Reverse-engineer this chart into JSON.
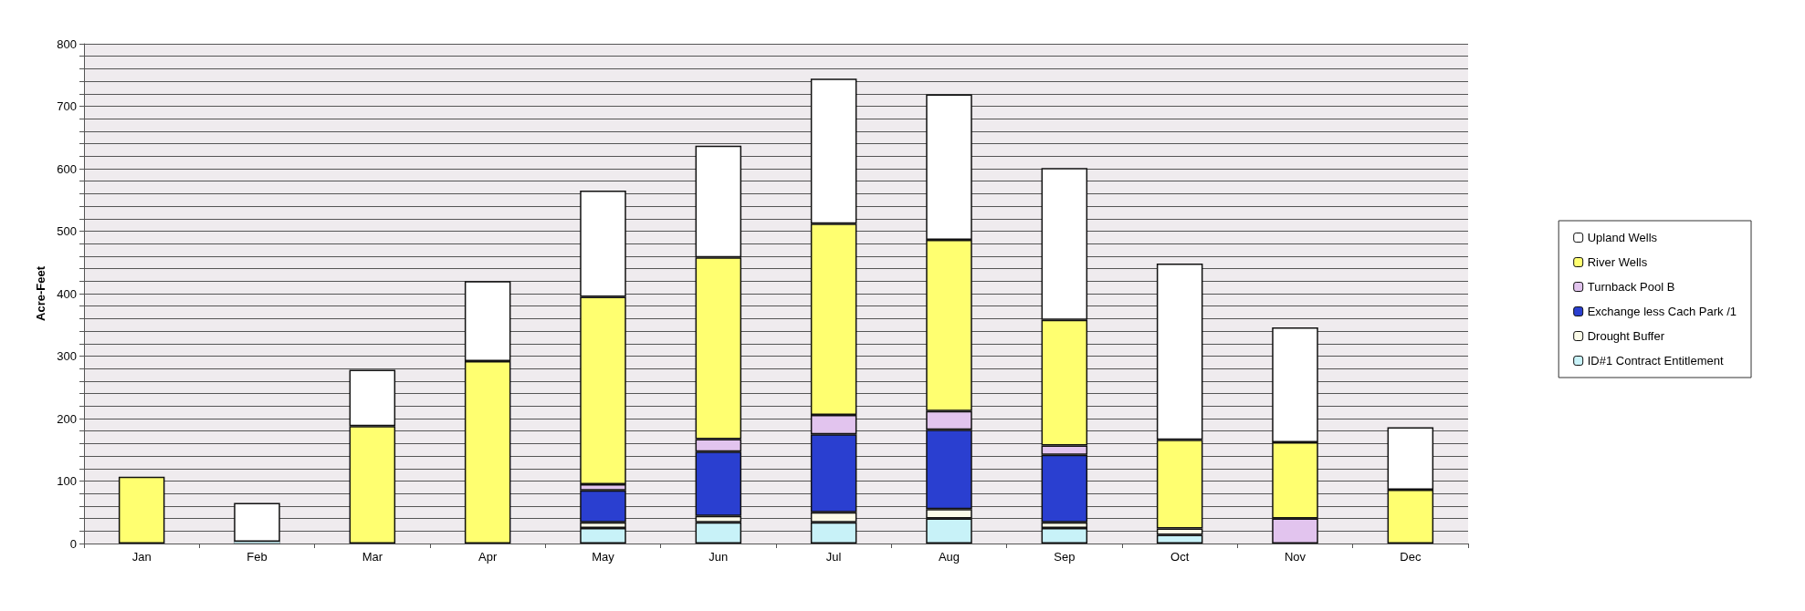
{
  "chart_data": {
    "type": "bar",
    "stacked": true,
    "ylabel": "Acre-Feet",
    "categories": [
      "Jan",
      "Feb",
      "Mar",
      "Apr",
      "May",
      "Jun",
      "Jul",
      "Aug",
      "Sep",
      "Oct",
      "Nov",
      "Dec"
    ],
    "series": [
      {
        "name": "ID#1 Contract Entitlement",
        "color": "#c8f2f8",
        "values": [
          0,
          3,
          0,
          0,
          25,
          34,
          34,
          40,
          25,
          14,
          0,
          0
        ]
      },
      {
        "name": "Drought Buffer",
        "color": "#fbfbe8",
        "values": [
          0,
          0,
          0,
          0,
          9,
          10,
          16,
          15,
          9,
          10,
          0,
          0
        ]
      },
      {
        "name": "Exchange less Cach Park /1",
        "color": "#2a3fd0",
        "values": [
          0,
          0,
          0,
          0,
          51,
          103,
          125,
          127,
          108,
          0,
          0,
          0
        ]
      },
      {
        "name": "Turnback Pool B",
        "color": "#e2c4ee",
        "values": [
          0,
          0,
          0,
          0,
          10,
          20,
          31,
          30,
          15,
          0,
          40,
          0
        ]
      },
      {
        "name": "River Wells",
        "color": "#ffff70",
        "values": [
          107,
          0,
          188,
          292,
          300,
          291,
          306,
          274,
          201,
          142,
          122,
          86
        ]
      },
      {
        "name": "Upland Wells",
        "color": "#ffffff",
        "values": [
          0,
          62,
          90,
          128,
          170,
          179,
          232,
          233,
          243,
          282,
          184,
          100
        ]
      }
    ],
    "ylim": [
      0,
      800
    ],
    "yticks": [
      0,
      {
        "value": 20,
        "label": null
      },
      {
        "value": 40,
        "label": null
      },
      {
        "value": 60,
        "label": null
      },
      {
        "value": 80,
        "label": null
      },
      100,
      {
        "value": 120,
        "label": null
      },
      {
        "value": 140,
        "label": null
      },
      {
        "value": 160,
        "label": null
      },
      {
        "value": 180,
        "label": null
      },
      200,
      {
        "value": 220,
        "label": null
      },
      {
        "value": 240,
        "label": null
      },
      {
        "value": 260,
        "label": null
      },
      {
        "value": 280,
        "label": null
      },
      300,
      {
        "value": 320,
        "label": null
      },
      {
        "value": 340,
        "label": null
      },
      {
        "value": 360,
        "label": null
      },
      {
        "value": 380,
        "label": null
      },
      400,
      {
        "value": 420,
        "label": null
      },
      {
        "value": 440,
        "label": null
      },
      {
        "value": 460,
        "label": null
      },
      {
        "value": 480,
        "label": null
      },
      500,
      {
        "value": 520,
        "label": null
      },
      {
        "value": 540,
        "label": null
      },
      {
        "value": 560,
        "label": null
      },
      {
        "value": 580,
        "label": null
      },
      600,
      {
        "value": 620,
        "label": null
      },
      {
        "value": 640,
        "label": null
      },
      {
        "value": 660,
        "label": null
      },
      {
        "value": 680,
        "label": null
      },
      700,
      {
        "value": 720,
        "label": null
      },
      {
        "value": 740,
        "label": null
      },
      {
        "value": 760,
        "label": null
      },
      {
        "value": 780,
        "label": null
      },
      800
    ],
    "grid": "y",
    "legend": "right"
  }
}
